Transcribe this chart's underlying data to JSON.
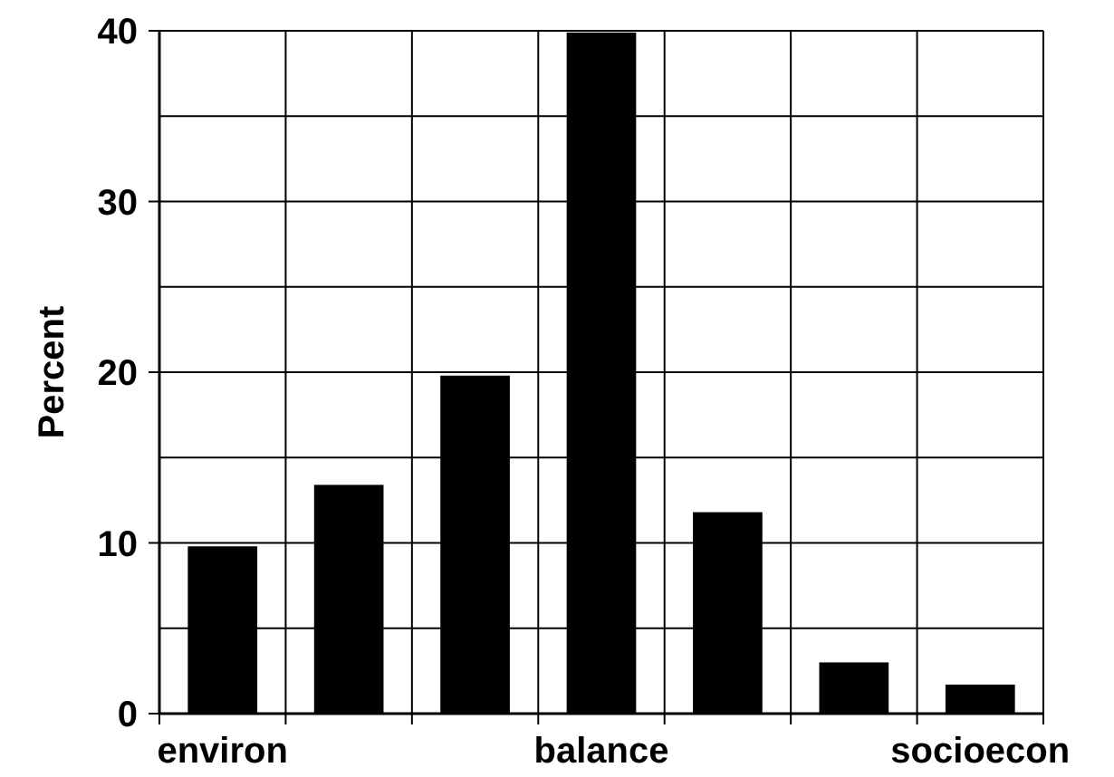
{
  "chart_data": {
    "type": "bar",
    "ylabel": "Percent",
    "categories": [
      "environ",
      null,
      null,
      "balance",
      null,
      null,
      "socioecon"
    ],
    "values": [
      9.8,
      13.4,
      19.8,
      39.9,
      11.8,
      3.0,
      1.7
    ],
    "color": "#000000",
    "ylim": [
      0,
      40
    ],
    "yticks": [
      0,
      10,
      20,
      30,
      40
    ],
    "grid": true
  }
}
